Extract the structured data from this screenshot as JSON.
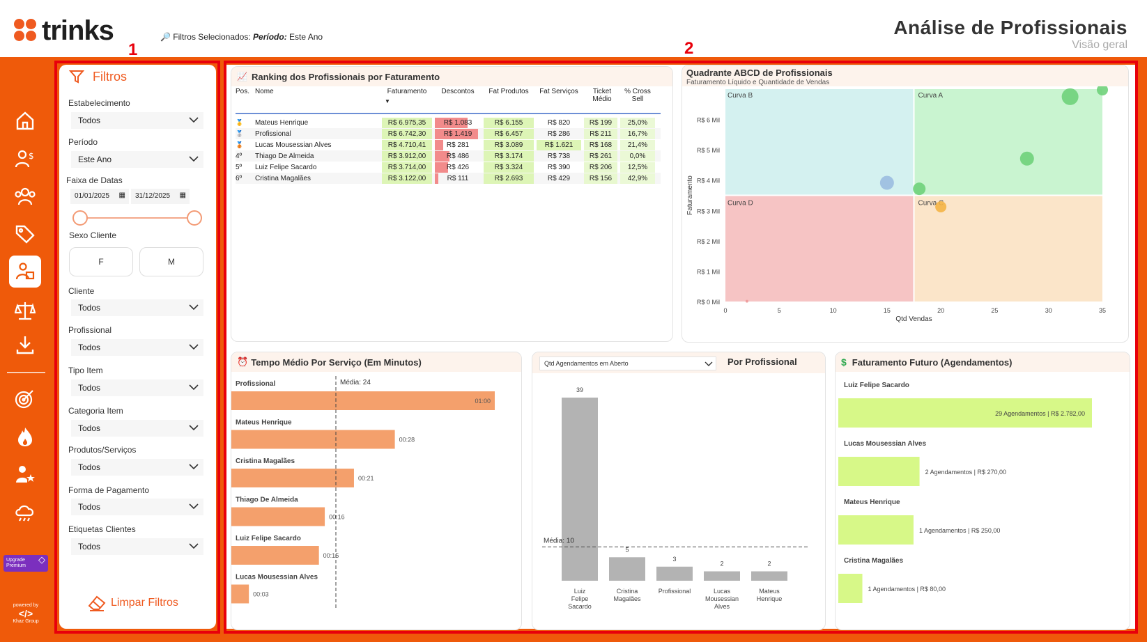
{
  "brand": {
    "name": "trinks",
    "accent": "#ef5a0a"
  },
  "header": {
    "filters_prefix": "Filtros Selecionados:",
    "filters_key": "Período:",
    "filters_value": "Este Ano",
    "title": "Análise de Profissionais",
    "subtitle": "Visão geral",
    "annotation_1": "1",
    "annotation_2": "2"
  },
  "sidebar": {
    "icons": [
      "home-icon",
      "commission-icon",
      "clients-icon",
      "tag-icon",
      "professionals-icon",
      "balance-icon",
      "download-icon",
      "target-icon",
      "fire-icon",
      "star-user-icon",
      "cloud-icon"
    ],
    "premium_label_1": "Upgrade",
    "premium_label_2": "Premium",
    "powered_by": "powered by",
    "powered_company": "Khaz Group"
  },
  "filters": {
    "title": "Filtros",
    "estabelecimento": {
      "label": "Estabelecimento",
      "value": "Todos"
    },
    "periodo": {
      "label": "Período",
      "value": "Este Ano"
    },
    "faixa": {
      "label": "Faixa de Datas",
      "start": "01/01/2025",
      "end": "31/12/2025"
    },
    "sexo": {
      "label": "Sexo Cliente",
      "f": "F",
      "m": "M"
    },
    "cliente": {
      "label": "Cliente",
      "value": "Todos"
    },
    "profissional": {
      "label": "Profissional",
      "value": "Todos"
    },
    "tipo_item": {
      "label": "Tipo Item",
      "value": "Todos"
    },
    "categoria_item": {
      "label": "Categoria Item",
      "value": "Todos"
    },
    "produtos_servicos": {
      "label": "Produtos/Serviços",
      "value": "Todos"
    },
    "forma_pagamento": {
      "label": "Forma de Pagamento",
      "value": "Todos"
    },
    "etiquetas": {
      "label": "Etiquetas Clientes",
      "value": "Todos"
    },
    "clear": "Limpar Filtros"
  },
  "ranking": {
    "title": "Ranking dos Profissionais por Faturamento",
    "columns": [
      "Pos.",
      "Nome",
      "Faturamento",
      "Descontos",
      "Fat Produtos",
      "Fat Serviços",
      "Ticket Médio",
      "% Cross Sell"
    ],
    "rows": [
      {
        "pos": "🥇",
        "nome": "Mateus Henrique",
        "fat": "R$ 6.975,35",
        "desc": "R$ 1.083",
        "prod": "R$ 6.155",
        "serv": "R$ 820",
        "ticket": "R$ 199",
        "cross": "25,0%"
      },
      {
        "pos": "🥈",
        "nome": "Profissional",
        "fat": "R$ 6.742,30",
        "desc": "R$ 1.419",
        "prod": "R$ 6.457",
        "serv": "R$ 286",
        "ticket": "R$ 211",
        "cross": "16,7%"
      },
      {
        "pos": "🥉",
        "nome": "Lucas Mousessian Alves",
        "fat": "R$ 4.710,41",
        "desc": "R$ 281",
        "prod": "R$ 3.089",
        "serv": "R$ 1.621",
        "ticket": "R$ 168",
        "cross": "21,4%"
      },
      {
        "pos": "4º",
        "nome": "Thiago De Almeida",
        "fat": "R$ 3.912,00",
        "desc": "R$ 486",
        "prod": "R$ 3.174",
        "serv": "R$ 738",
        "ticket": "R$ 261",
        "cross": "0,0%"
      },
      {
        "pos": "5º",
        "nome": "Luiz Felipe Sacardo",
        "fat": "R$ 3.714,00",
        "desc": "R$ 426",
        "prod": "R$ 3.324",
        "serv": "R$ 390",
        "ticket": "R$ 206",
        "cross": "12,5%"
      },
      {
        "pos": "6º",
        "nome": "Cristina Magalães",
        "fat": "R$ 3.122,00",
        "desc": "R$ 111",
        "prod": "R$ 2.693",
        "serv": "R$ 429",
        "ticket": "R$ 156",
        "cross": "42,9%"
      }
    ],
    "discount_values": [
      1083,
      1419,
      281,
      486,
      426,
      111
    ]
  },
  "abcd": {
    "title": "Quadrante ABCD de Profissionais",
    "subtitle": "Faturamento Líquido e Quantidade de Vendas",
    "xlabel": "Qtd Vendas",
    "ylabel": "Faturamento",
    "quadrants": [
      "Curva B",
      "Curva A",
      "Curva D",
      "Curva C"
    ],
    "yticks": [
      "R$ 0 Mil",
      "R$ 1 Mil",
      "R$ 2 Mil",
      "R$ 3 Mil",
      "R$ 4 Mil",
      "R$ 5 Mil",
      "R$ 6 Mil"
    ],
    "xticks": [
      "0",
      "5",
      "10",
      "15",
      "20",
      "25",
      "30",
      "35"
    ]
  },
  "tempo": {
    "title": "Tempo Médio Por Serviço (Em Minutos)",
    "media_label": "Média: 24",
    "items": [
      {
        "name": "Profissional",
        "label": "01:00"
      },
      {
        "name": "Mateus Henrique",
        "label": "00:28"
      },
      {
        "name": "Cristina Magalães",
        "label": "00:21"
      },
      {
        "name": "Thiago De Almeida",
        "label": "00:16"
      },
      {
        "name": "Luiz Felipe Sacardo",
        "label": "00:15"
      },
      {
        "name": "Lucas Mousessian Alves",
        "label": "00:03"
      }
    ]
  },
  "agend": {
    "dropdown": "Qtd Agendamentos em Aberto",
    "title": "Por Profissional",
    "media_label": "Média: 10",
    "bars": [
      {
        "name": "Luiz Felipe Sacardo",
        "value": "39"
      },
      {
        "name": "Cristina Magalães",
        "value": "5"
      },
      {
        "name": "Profissional",
        "value": "3"
      },
      {
        "name": "Lucas Mousessian Alves",
        "value": "2"
      },
      {
        "name": "Mateus Henrique",
        "value": "2"
      }
    ]
  },
  "futuro": {
    "title": "Faturamento Futuro (Agendamentos)",
    "items": [
      {
        "name": "Luiz Felipe Sacardo",
        "label": "29 Agendamentos | R$ 2.782,00"
      },
      {
        "name": "Lucas Mousessian Alves",
        "label": "2 Agendamentos | R$ 270,00"
      },
      {
        "name": "Mateus Henrique",
        "label": "1 Agendamentos | R$ 250,00"
      },
      {
        "name": "Cristina Magalães",
        "label": "1 Agendamentos | R$ 80,00"
      }
    ]
  },
  "chart_data": [
    {
      "type": "table",
      "title": "Ranking dos Profissionais por Faturamento"
    },
    {
      "type": "scatter",
      "title": "Quadrante ABCD de Profissionais",
      "xlabel": "Qtd Vendas",
      "ylabel": "Faturamento",
      "xlim": [
        0,
        35
      ],
      "ylim": [
        0,
        7000
      ],
      "points": [
        {
          "x": 32,
          "y": 6750
        },
        {
          "x": 35,
          "y": 6975
        },
        {
          "x": 28,
          "y": 4710
        },
        {
          "x": 15,
          "y": 3912
        },
        {
          "x": 18,
          "y": 3714
        },
        {
          "x": 20,
          "y": 3122
        },
        {
          "x": 2,
          "y": 10
        }
      ],
      "point_colors": [
        "#6fd17a",
        "#6fd17a",
        "#6fd17a",
        "#9bbde0",
        "#6fd17a",
        "#f4b445",
        "#e99"
      ]
    },
    {
      "type": "bar",
      "title": "Tempo Médio Por Serviço (Em Minutos)",
      "categories": [
        "Profissional",
        "Mateus Henrique",
        "Cristina Magalães",
        "Thiago De Almeida",
        "Luiz Felipe Sacardo",
        "Lucas Mousessian Alves"
      ],
      "values": [
        60,
        28,
        21,
        16,
        15,
        3
      ],
      "reference": 24
    },
    {
      "type": "bar",
      "title": "Por Profissional",
      "categories": [
        "Luiz Felipe Sacardo",
        "Cristina Magalães",
        "Profissional",
        "Lucas Mousessian Alves",
        "Mateus Henrique"
      ],
      "values": [
        39,
        5,
        3,
        2,
        2
      ],
      "reference": 10
    },
    {
      "type": "bar",
      "title": "Faturamento Futuro (Agendamentos)",
      "categories": [
        "Luiz Felipe Sacardo",
        "Lucas Mousessian Alves",
        "Mateus Henrique",
        "Cristina Magalães"
      ],
      "values": [
        2782,
        270,
        250,
        80
      ]
    }
  ]
}
